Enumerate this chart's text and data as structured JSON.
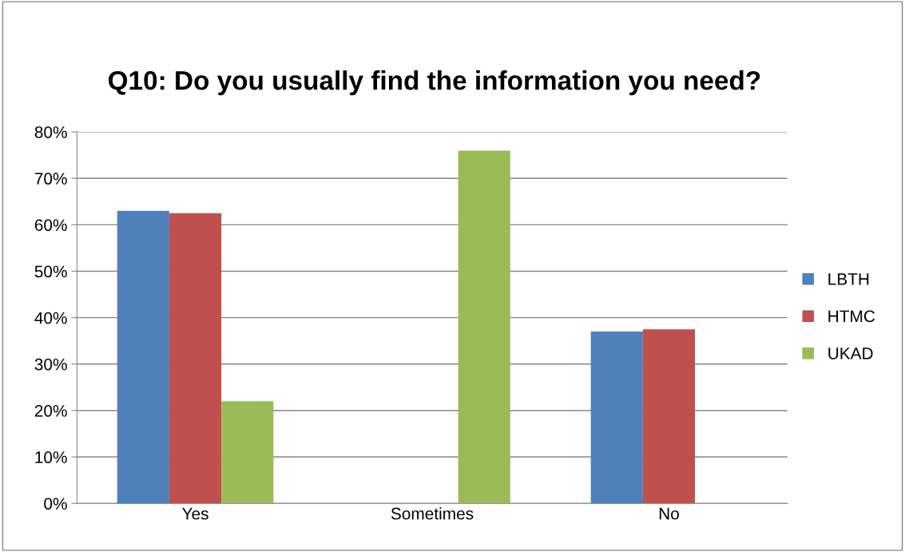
{
  "chart_data": {
    "type": "bar",
    "title": "Q10: Do you usually find the information you need?",
    "categories": [
      "Yes",
      "Sometimes",
      "No"
    ],
    "series": [
      {
        "name": "LBTH",
        "color": "#4f81bd",
        "values": [
          63,
          0,
          37
        ]
      },
      {
        "name": "HTMC",
        "color": "#c0504d",
        "values": [
          62.5,
          0,
          37.5
        ]
      },
      {
        "name": "UKAD",
        "color": "#9bbb59",
        "values": [
          22,
          76,
          0
        ]
      }
    ],
    "ylim": [
      0,
      80
    ],
    "yticks": [
      {
        "value": 0,
        "label": "0%"
      },
      {
        "value": 10,
        "label": "10%"
      },
      {
        "value": 20,
        "label": "20%"
      },
      {
        "value": 30,
        "label": "30%"
      },
      {
        "value": 40,
        "label": "40%"
      },
      {
        "value": 50,
        "label": "50%"
      },
      {
        "value": 60,
        "label": "60%"
      },
      {
        "value": 70,
        "label": "70%"
      },
      {
        "value": 80,
        "label": "80%"
      }
    ],
    "grid": "y",
    "legend": "right"
  }
}
